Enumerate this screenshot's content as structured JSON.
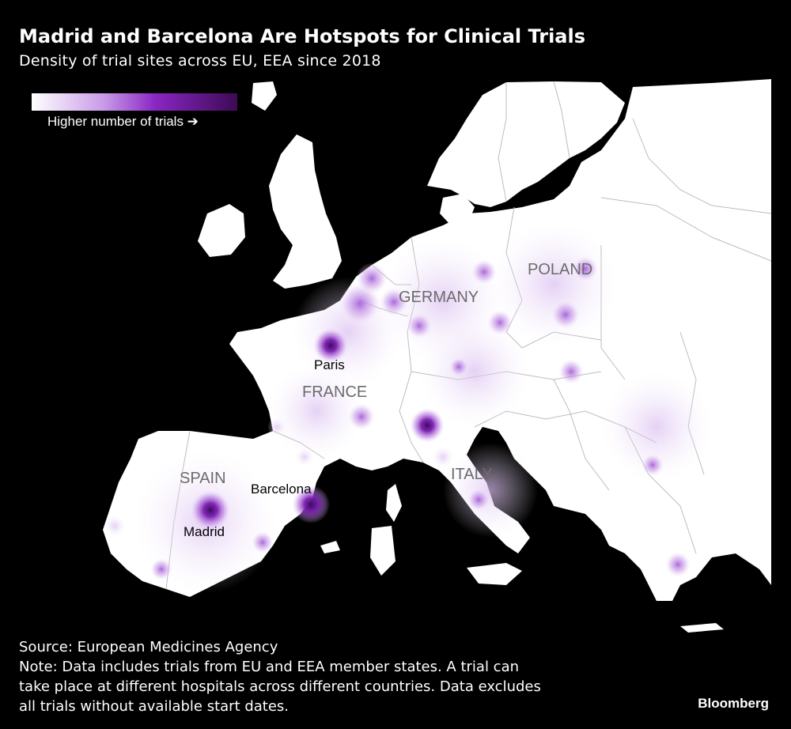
{
  "header": {
    "title": "Madrid and Barcelona Are Hotspots for Clinical Trials",
    "subtitle": "Density of trial sites across EU, EEA since 2018"
  },
  "legend": {
    "label": "Higher number of trials ➔",
    "color_low": "#ffffff",
    "color_mid": "#b26be0",
    "color_high": "#3d0a55"
  },
  "colors": {
    "background": "#000000",
    "land": "#ffffff",
    "hotspot": "#7a1fb0",
    "hotspot_core": "#3f0a64",
    "borders": "#bdbdbd"
  },
  "map": {
    "country_labels": [
      "GERMANY",
      "POLAND",
      "FRANCE",
      "SPAIN",
      "ITALY"
    ],
    "city_labels": [
      "Paris",
      "Barcelona",
      "Madrid"
    ],
    "hotspots": [
      {
        "name": "Madrid",
        "intensity": 1.0
      },
      {
        "name": "Barcelona",
        "intensity": 0.95
      },
      {
        "name": "Paris",
        "intensity": 0.9
      },
      {
        "name": "Milan",
        "intensity": 0.85
      },
      {
        "name": "Brussels",
        "intensity": 0.7
      },
      {
        "name": "Amsterdam",
        "intensity": 0.6
      },
      {
        "name": "Lyon",
        "intensity": 0.5
      },
      {
        "name": "Berlin",
        "intensity": 0.5
      },
      {
        "name": "Warsaw",
        "intensity": 0.45
      },
      {
        "name": "Prague",
        "intensity": 0.4
      },
      {
        "name": "Budapest",
        "intensity": 0.35
      },
      {
        "name": "Athens",
        "intensity": 0.45
      },
      {
        "name": "Rome",
        "intensity": 0.45
      }
    ]
  },
  "footer": {
    "source": "Source: European Medicines Agency",
    "note_line1": "Note: Data includes trials from EU and EEA member states. A trial can",
    "note_line2": "take place at different hospitals across different countries. Data excludes",
    "note_line3": "all trials without available start dates."
  },
  "brand": "Bloomberg"
}
